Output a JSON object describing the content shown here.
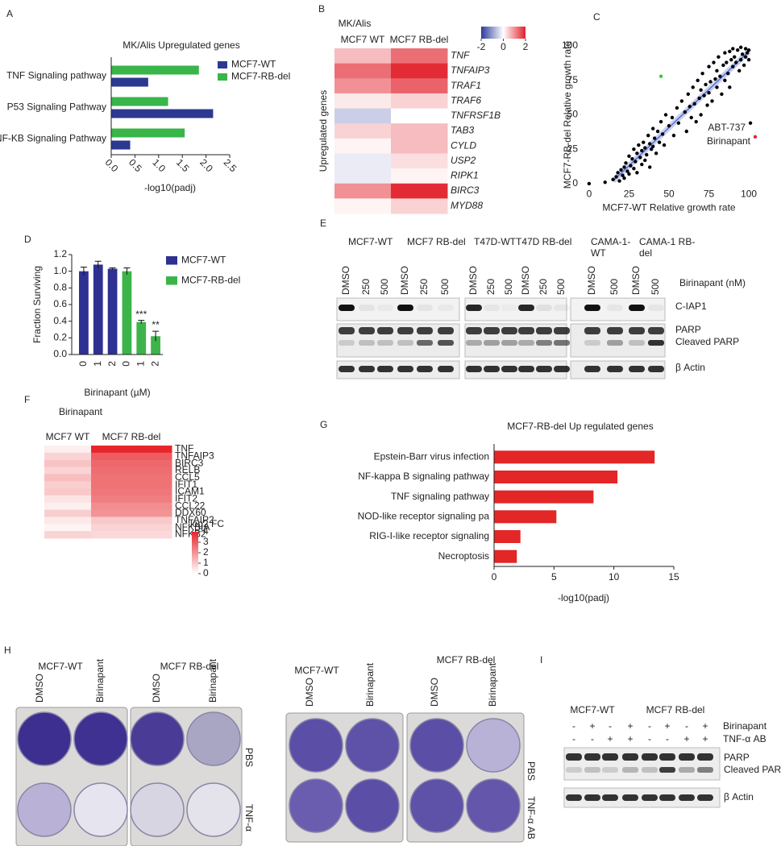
{
  "panel_labels": [
    "A",
    "B",
    "C",
    "D",
    "E",
    "F",
    "G",
    "H",
    "I"
  ],
  "chart_data": [
    {
      "type": "bar",
      "orientation": "horizontal",
      "title": "MK/Alis Upregulated genes",
      "categories": [
        "TNF Signaling pathway",
        "P53 Signaling Pathway",
        "NF-KB Signaling Pathway"
      ],
      "series": [
        {
          "name": "MCF7-WT",
          "color": "#2b3990",
          "values": [
            0.78,
            2.15,
            0.4
          ]
        },
        {
          "name": "MCF7-RB-del",
          "color": "#39b54a",
          "values": [
            1.85,
            1.2,
            1.55
          ]
        }
      ],
      "xlim": [
        0,
        2.5
      ],
      "xticks": [
        {
          "value": 0,
          "label": "0.0"
        },
        0.5,
        {
          "value": 1,
          "label": "1.0"
        },
        1.5,
        {
          "value": 2,
          "label": "2.0"
        },
        2.5
      ],
      "xlabel": "-log10(padj)",
      "legend": "upper right"
    },
    {
      "type": "heatmap",
      "title": "MK/Alis",
      "x": [
        "MCF7 WT",
        "MCF7 RB-del"
      ],
      "y": [
        "TNF",
        "TNFAIP3",
        "TRAF1",
        "TRAF6",
        "TNFRSF1B",
        "TAB3",
        "CYLD",
        "USP2",
        "RIPK1",
        "BIRC3",
        "MYD88"
      ],
      "values": [
        [
          0.6,
          1.3
        ],
        [
          1.3,
          1.9
        ],
        [
          1.0,
          1.4
        ],
        [
          0.2,
          0.4
        ],
        [
          -0.5,
          0.0
        ],
        [
          0.4,
          0.6
        ],
        [
          0.1,
          0.6
        ],
        [
          -0.2,
          0.3
        ],
        [
          -0.2,
          0.1
        ],
        [
          1.0,
          1.9
        ],
        [
          0.1,
          0.4
        ]
      ],
      "ylabel": "Upregulated genes",
      "zlim": [
        -2,
        2
      ],
      "zticks": [
        -2,
        0,
        2
      ],
      "colors": [
        "#2b3b9b",
        "#ffffff",
        "#e2202a"
      ]
    },
    {
      "type": "scatter",
      "xlabel": "MCF7-WT Relative growth rate",
      "ylabel": "MCF7-RB-del Relative growth rate",
      "xlim": [
        -5,
        105
      ],
      "ylim": [
        -5,
        105
      ],
      "xticks": [
        0,
        25,
        50,
        75,
        100
      ],
      "yticks": [
        0,
        25,
        50,
        75,
        100
      ],
      "series": [
        {
          "color": "#000000",
          "x": [
            0,
            10,
            15,
            17,
            18,
            19,
            20,
            21,
            22,
            22,
            23,
            24,
            25,
            25,
            26,
            27,
            28,
            28,
            29,
            30,
            30,
            31,
            32,
            33,
            33,
            34,
            35,
            35,
            36,
            37,
            38,
            38,
            39,
            40,
            40,
            41,
            42,
            43,
            44,
            45,
            46,
            47,
            48,
            50,
            52,
            53,
            55,
            56,
            58,
            60,
            61,
            62,
            63,
            64,
            65,
            66,
            67,
            68,
            69,
            70,
            70,
            71,
            72,
            73,
            74,
            75,
            75,
            76,
            77,
            78,
            79,
            80,
            80,
            81,
            82,
            83,
            84,
            85,
            85,
            86,
            87,
            88,
            88,
            89,
            90,
            90,
            91,
            92,
            93,
            94,
            95,
            95,
            96,
            97,
            98,
            98,
            99,
            100,
            100
          ],
          "y": [
            0,
            1,
            3,
            5,
            8,
            2,
            10,
            6,
            12,
            4,
            15,
            9,
            20,
            7,
            13,
            18,
            25,
            11,
            16,
            22,
            8,
            28,
            19,
            24,
            14,
            30,
            26,
            17,
            21,
            35,
            29,
            12,
            25,
            40,
            27,
            33,
            22,
            38,
            30,
            45,
            36,
            28,
            50,
            42,
            48,
            35,
            55,
            44,
            60,
            52,
            38,
            65,
            56,
            48,
            70,
            58,
            45,
            75,
            62,
            68,
            50,
            80,
            64,
            72,
            57,
            85,
            66,
            74,
            60,
            88,
            76,
            70,
            82,
            92,
            78,
            65,
            86,
            95,
            75,
            88,
            80,
            96,
            70,
            90,
            85,
            98,
            92,
            88,
            97,
            82,
            99,
            90,
            94,
            86,
            98,
            92,
            95,
            90,
            97
          ]
        },
        {
          "color": "#000000",
          "label": "ABT-737",
          "x": [
            101
          ],
          "y": [
            44
          ]
        },
        {
          "color": "#2ecc40",
          "x": [
            45
          ],
          "y": [
            78
          ]
        },
        {
          "color": "#e8262b",
          "label": "Birinapant",
          "x": [
            104
          ],
          "y": [
            34
          ]
        }
      ],
      "trend_line": {
        "color": "#4a63c9",
        "x": [
          15,
          100
        ],
        "y": [
          2,
          96
        ]
      }
    },
    {
      "type": "bar",
      "categories": [
        "0",
        "1",
        "2",
        "0",
        "1",
        "2"
      ],
      "series": [
        {
          "name": "MCF7-WT",
          "color": "#2e3192",
          "values": [
            1.0,
            1.08,
            1.03,
            null,
            null,
            null
          ],
          "errors": [
            0.05,
            0.04,
            0.01,
            null,
            null,
            null
          ]
        },
        {
          "name": "MCF7-RB-del",
          "color": "#3cb44a",
          "values": [
            null,
            null,
            null,
            1.0,
            0.39,
            0.22
          ],
          "errors": [
            null,
            null,
            null,
            0.04,
            0.02,
            0.06
          ],
          "significance": [
            null,
            null,
            null,
            null,
            "***",
            "**"
          ]
        }
      ],
      "ylim": [
        0,
        1.2
      ],
      "yticks": [
        {
          "value": 0,
          "label": "0.0"
        },
        0.2,
        0.4,
        0.6,
        0.8,
        {
          "value": 1,
          "label": "1.0"
        },
        1.2
      ],
      "xlabel": "Birinapant (µM)",
      "ylabel": "Fraction Surviving",
      "legend": "upper right"
    },
    {
      "type": "heatmap",
      "title": "Birinapant",
      "x": [
        "MCF7 WT",
        "MCF7 RB-del"
      ],
      "y": [
        "TNF",
        "TNFAIP3",
        "BIRC3",
        "RELB",
        "CCL5",
        "IFIT1",
        "ICAM1",
        "IFIT2",
        "CCL22",
        "DDX60",
        "TNFAIP2",
        "NFKBIA",
        "NFKB2"
      ],
      "values": [
        [
          0.3,
          4.0
        ],
        [
          0.8,
          3.0
        ],
        [
          1.1,
          2.8
        ],
        [
          0.8,
          2.7
        ],
        [
          1.2,
          2.6
        ],
        [
          0.9,
          2.6
        ],
        [
          1.0,
          2.5
        ],
        [
          0.5,
          2.4
        ],
        [
          0.3,
          2.1
        ],
        [
          0.9,
          2.0
        ],
        [
          0.4,
          1.0
        ],
        [
          0.2,
          0.8
        ],
        [
          0.8,
          0.7
        ]
      ],
      "zlim": [
        0,
        4
      ],
      "zticks": [
        0,
        1,
        2,
        3,
        4
      ],
      "colorbar_label": "log2 FC",
      "colors": [
        "#ffffff",
        "#e6262b"
      ]
    },
    {
      "type": "bar",
      "orientation": "horizontal",
      "title": "MCF7-RB-del Up regulated genes",
      "categories": [
        "Epstein-Barr virus infection",
        "NF-kappa B signaling pathway",
        "TNF signaling pathway",
        "NOD-like receptor signaling pa",
        "RIG-I-like receptor signaling",
        "Necroptosis"
      ],
      "values": [
        13.4,
        10.3,
        8.3,
        5.2,
        2.2,
        1.9
      ],
      "color": "#e32626",
      "xlim": [
        0,
        15
      ],
      "xticks": [
        0,
        5,
        10,
        15
      ],
      "xlabel": "-log10(padj)"
    }
  ],
  "blot_e": {
    "groups": [
      "MCF7-WT",
      "MCF7 RB-del",
      "T47D-WT",
      "T47D RB-del",
      "CAMA-1-WT",
      "CAMA-1 RB-del"
    ],
    "lanes": [
      "DMSO",
      "250",
      "500",
      "DMSO",
      "250",
      "500",
      "DMSO",
      "250",
      "500",
      "DMSO",
      "250",
      "500",
      "DMSO",
      "500",
      "DMSO",
      "500"
    ],
    "treatment": "Birinapant (nM)",
    "bands": [
      "C-IAP1",
      "PARP",
      "Cleaved PARP",
      "β Actin"
    ]
  },
  "plates_h": {
    "left": {
      "groups": [
        "MCF7-WT",
        "MCF7 RB-del"
      ],
      "columns": [
        "DMSO",
        "Birinapant",
        "DMSO",
        "Birinapant"
      ],
      "rows": [
        "PBS",
        "TNF-α"
      ]
    },
    "right": {
      "groups": [
        "MCF7-WT",
        "MCF7 RB-del"
      ],
      "columns": [
        "DMSO",
        "Birinapant",
        "DMSO",
        "Birinapant"
      ],
      "rows": [
        "PBS",
        "TNF-α AB"
      ]
    }
  },
  "blot_i": {
    "groups": [
      "MCF7-WT",
      "MCF7 RB-del"
    ],
    "rows": [
      {
        "label": "Birinapant",
        "signs": [
          "-",
          "+",
          "-",
          "+",
          "-",
          "+",
          "-",
          "+"
        ]
      },
      {
        "label": "TNF-α AB",
        "signs": [
          "-",
          "-",
          "+",
          "+",
          "-",
          "-",
          "+",
          "+"
        ]
      }
    ],
    "bands": [
      "PARP",
      "Cleaved PARP",
      "β Actin"
    ]
  }
}
